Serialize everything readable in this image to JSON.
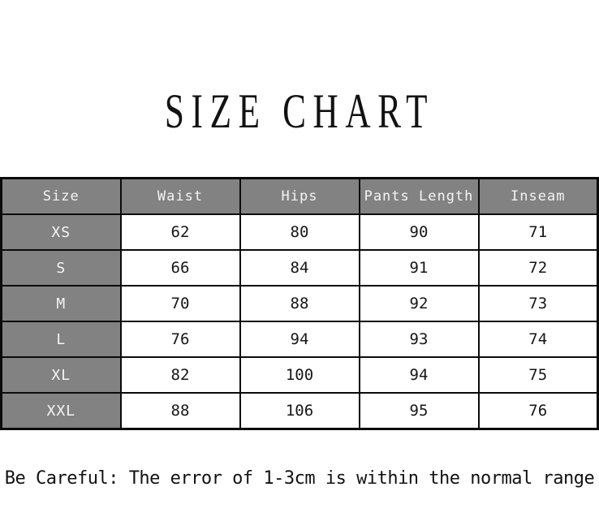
{
  "chart_data": {
    "type": "table",
    "title": "SIZE CHART",
    "columns": [
      "Size",
      "Waist",
      "Hips",
      "Pants Length",
      "Inseam"
    ],
    "rows": [
      [
        "XS",
        "62",
        "80",
        "90",
        "71"
      ],
      [
        "S",
        "66",
        "84",
        "91",
        "72"
      ],
      [
        "M",
        "70",
        "88",
        "92",
        "73"
      ],
      [
        "L",
        "76",
        "94",
        "93",
        "74"
      ],
      [
        "XL",
        "82",
        "100",
        "94",
        "75"
      ],
      [
        "XXL",
        "88",
        "106",
        "95",
        "76"
      ]
    ],
    "note": "Be Careful: The error of 1-3cm is within the normal range"
  },
  "colors": {
    "header_bg": "#828282",
    "header_text": "#f4f4f4",
    "body_text": "#161616",
    "border": "#0b0b0b",
    "background": "#ffffff"
  }
}
